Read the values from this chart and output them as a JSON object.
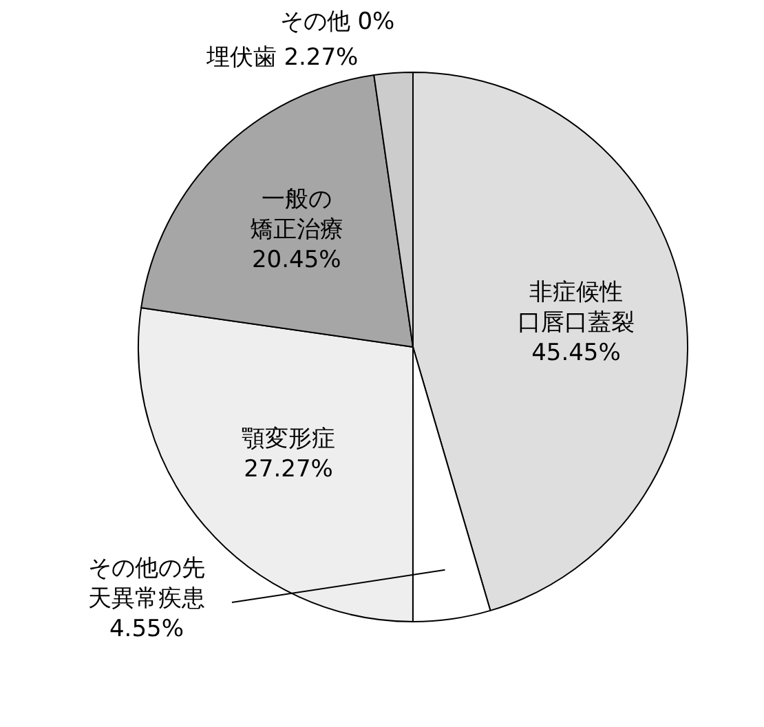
{
  "chart_data": {
    "type": "pie",
    "categories": [
      "非症候性口唇口蓋裂",
      "その他の先天異常疾患",
      "顎変形症",
      "一般の矯正治療",
      "埋伏歯",
      "その他"
    ],
    "values": [
      45.45,
      4.55,
      27.27,
      20.45,
      2.27,
      0
    ],
    "value_labels": [
      "45.45%",
      "4.55%",
      "27.27%",
      "20.45%",
      "2.27%",
      "0%"
    ],
    "colors": [
      "#dedede",
      "#ffffff",
      "#eeeeee",
      "#a6a6a6",
      "#cccccc",
      "#ffffff"
    ],
    "legend": false
  }
}
